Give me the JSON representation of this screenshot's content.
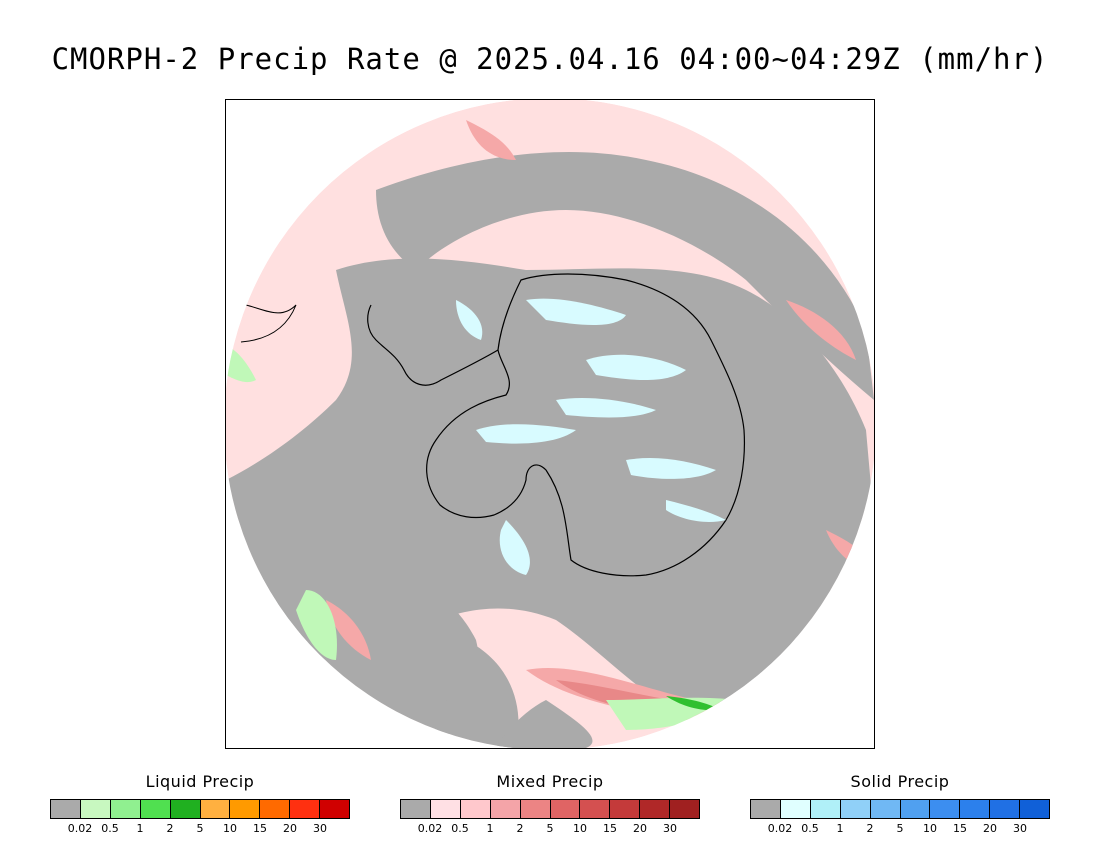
{
  "title": "CMORPH-2 Precip Rate @ 2025.04.16 04:00~04:29Z (mm/hr)",
  "map": {
    "projection": "south-polar-stereographic",
    "background_color": "#aaaaaa",
    "mixed_light": "#ffe0e0",
    "mixed_mid": "#f5a8a8",
    "mixed_dark": "#e07070",
    "solid_light": "#e0ffff",
    "liquid_light": "#c0f8b8",
    "liquid_dark": "#30c030",
    "coastline": "#000000"
  },
  "legends": [
    {
      "title": "Liquid Precip",
      "colors": [
        "#aaaaaa",
        "#c8f8c0",
        "#90f090",
        "#50e050",
        "#20b020",
        "#ffb040",
        "#ff9a00",
        "#ff6a00",
        "#ff3010",
        "#d00000"
      ],
      "ticks": [
        "0.02",
        "0.5",
        "1",
        "2",
        "5",
        "10",
        "15",
        "20",
        "30"
      ]
    },
    {
      "title": "Mixed Precip",
      "colors": [
        "#aaaaaa",
        "#ffe0e4",
        "#ffc8cc",
        "#f4a4a8",
        "#ec8484",
        "#e06464",
        "#d45050",
        "#c43a3a",
        "#b02828",
        "#a02020"
      ],
      "ticks": [
        "0.02",
        "0.5",
        "1",
        "2",
        "5",
        "10",
        "15",
        "20",
        "30"
      ]
    },
    {
      "title": "Solid Precip",
      "colors": [
        "#aaaaaa",
        "#e0ffff",
        "#b0f0f8",
        "#90d0f8",
        "#70b8f4",
        "#50a0f0",
        "#3c8ef0",
        "#2c80ec",
        "#2070e4",
        "#1060d8"
      ],
      "ticks": [
        "0.02",
        "0.5",
        "1",
        "2",
        "5",
        "10",
        "15",
        "20",
        "30"
      ]
    }
  ]
}
